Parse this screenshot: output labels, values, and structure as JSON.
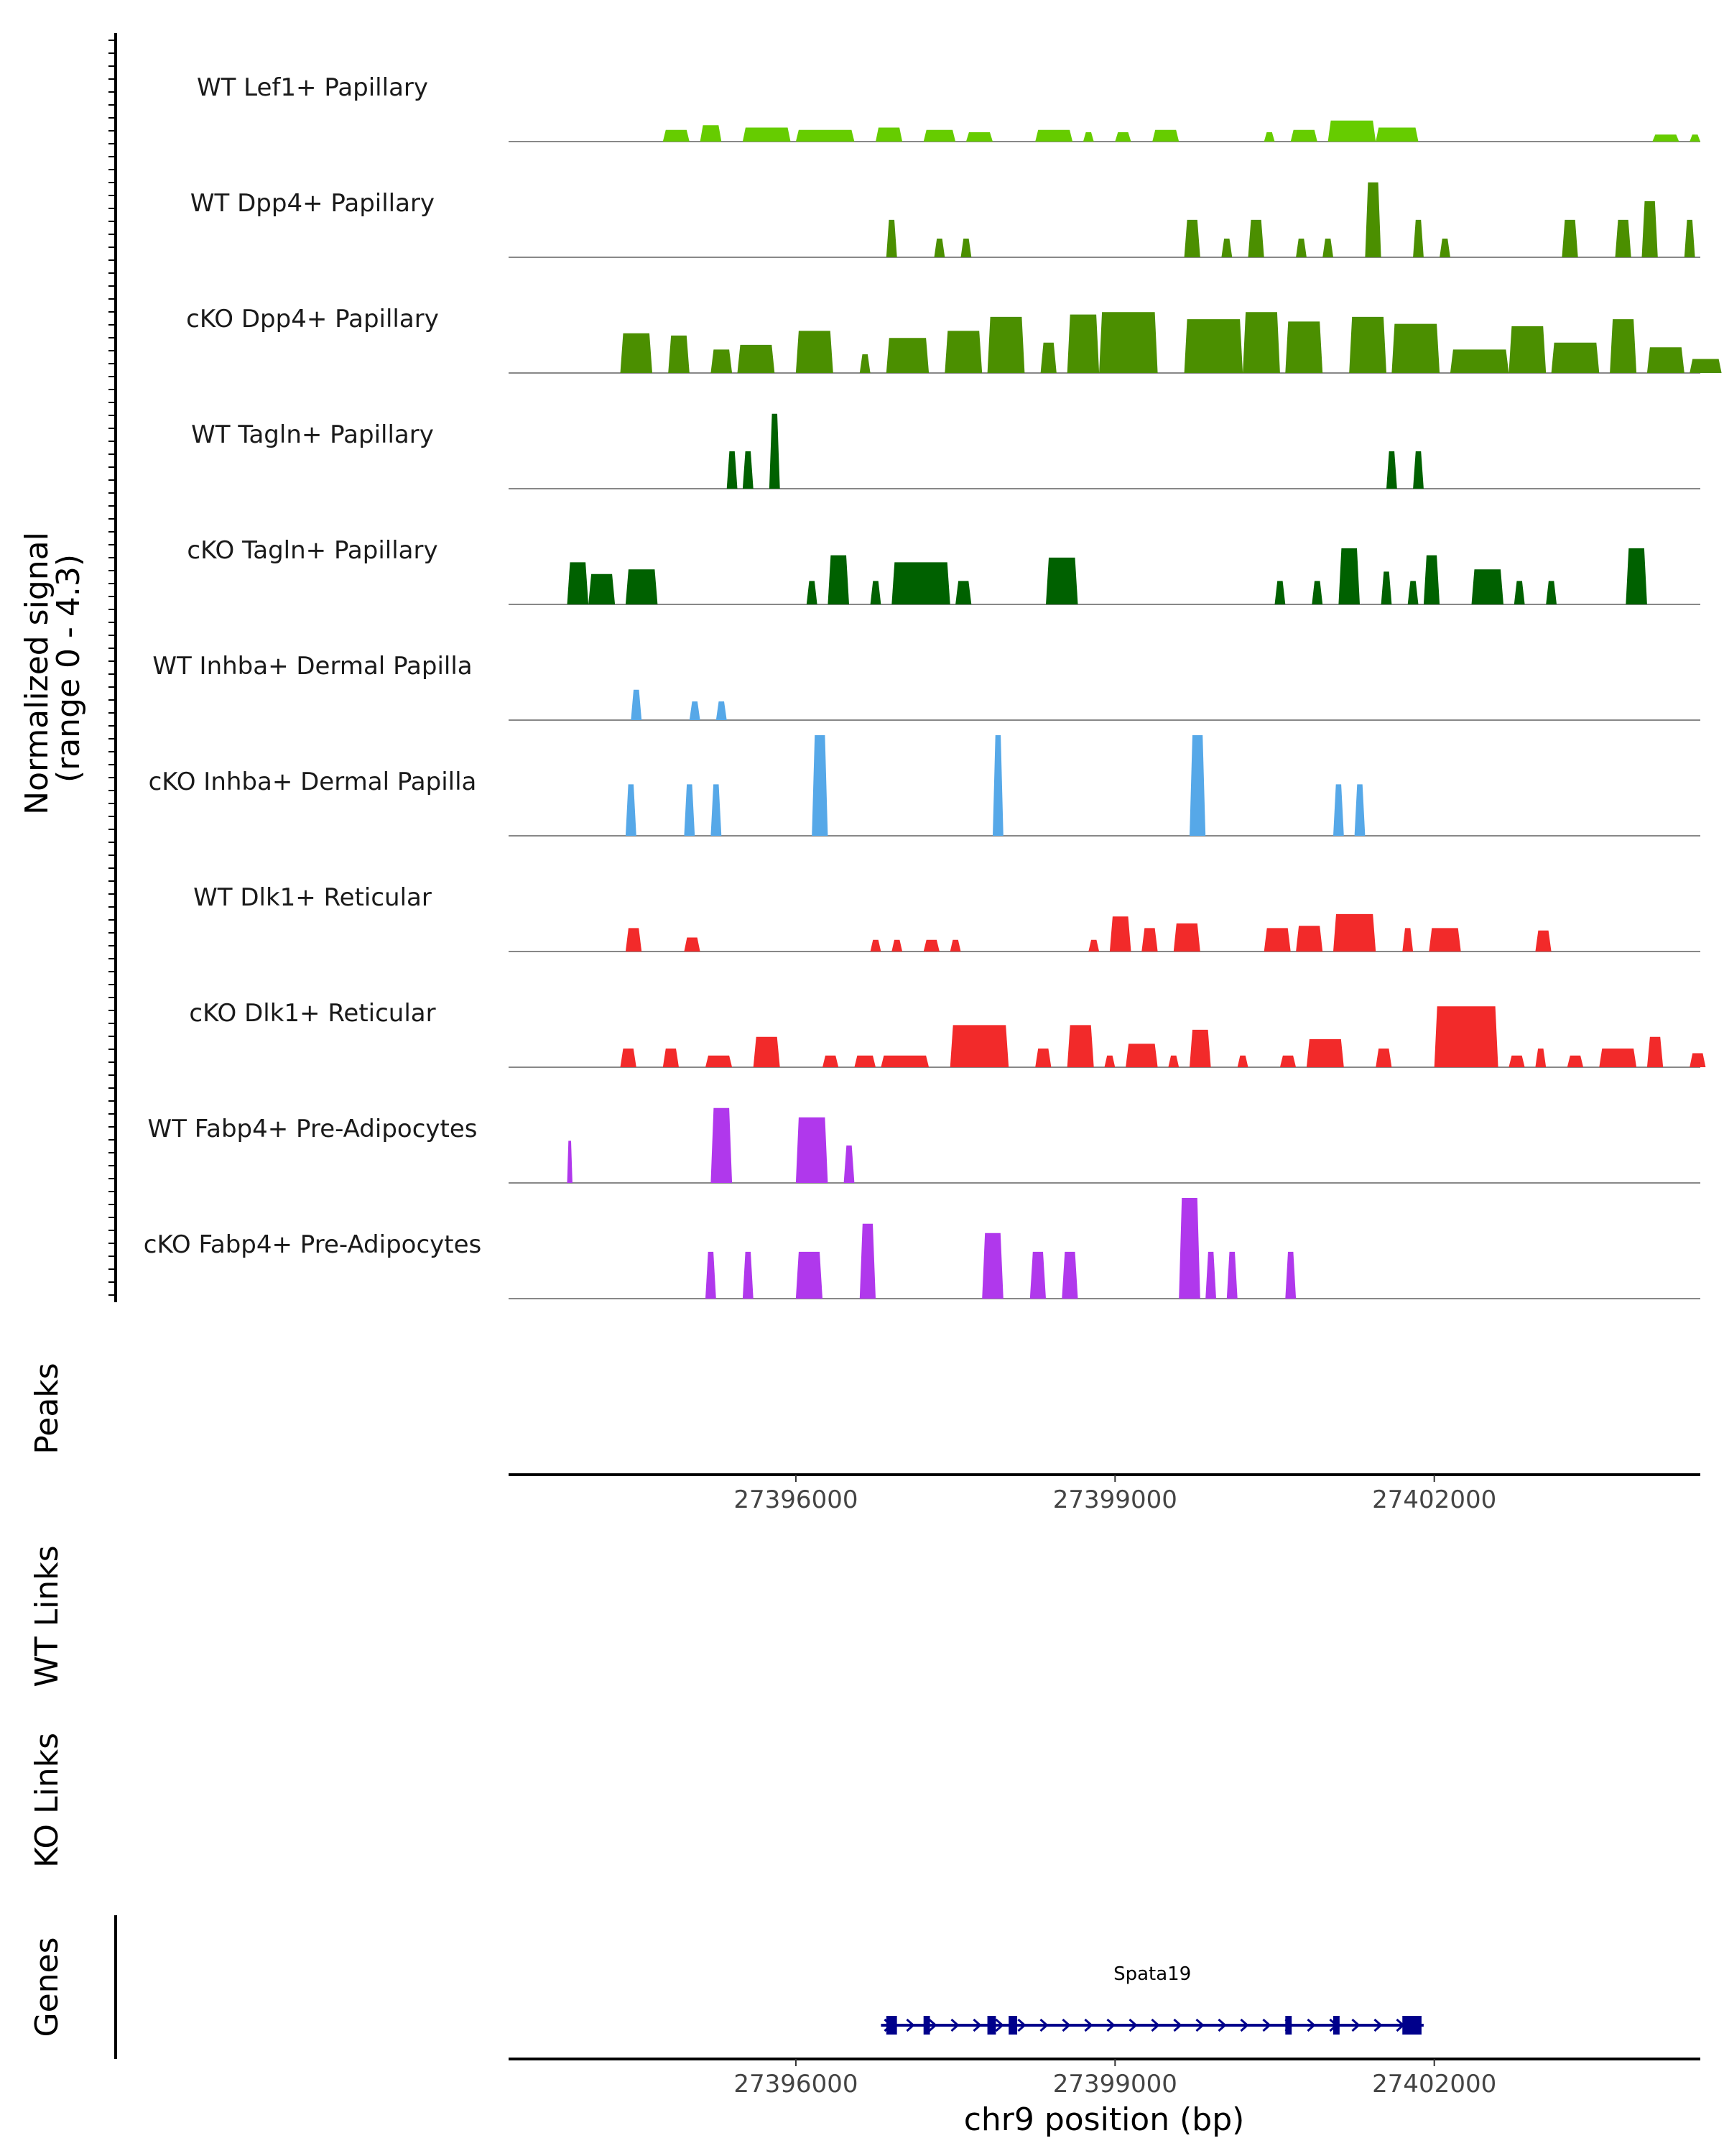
{
  "chart_data": {
    "type": "area",
    "chromosome": "chr9",
    "x_range": [
      27393300,
      27404500
    ],
    "coverage": {
      "ylabel": "Normalized signal\n(range 0 - 4.3)",
      "y_range": [
        0,
        4.3
      ],
      "tracks": [
        {
          "name": "WT Lef1+ Papillary",
          "color": "#66cc00",
          "regions": [
            [
              27394750,
              27395000,
              0.5
            ],
            [
              27395100,
              27395300,
              0.7
            ],
            [
              27395500,
              27395950,
              0.6
            ],
            [
              27396000,
              27396550,
              0.5
            ],
            [
              27396750,
              27397000,
              0.6
            ],
            [
              27397200,
              27397500,
              0.5
            ],
            [
              27397600,
              27397850,
              0.4
            ],
            [
              27398250,
              27398600,
              0.5
            ],
            [
              27398700,
              27398800,
              0.4
            ],
            [
              27399000,
              27399150,
              0.4
            ],
            [
              27399350,
              27399600,
              0.5
            ],
            [
              27400400,
              27400500,
              0.4
            ],
            [
              27400650,
              27400900,
              0.5
            ],
            [
              27401000,
              27401450,
              0.9
            ],
            [
              27401450,
              27401850,
              0.6
            ],
            [
              27404050,
              27404300,
              0.3
            ],
            [
              27404400,
              27404500,
              0.3
            ]
          ]
        },
        {
          "name": "WT Dpp4+ Papillary",
          "color": "#4b8f00",
          "regions": [
            [
              27396850,
              27396950,
              1.6
            ],
            [
              27397300,
              27397400,
              0.8
            ],
            [
              27397550,
              27397650,
              0.8
            ],
            [
              27399650,
              27399800,
              1.6
            ],
            [
              27400000,
              27400100,
              0.8
            ],
            [
              27400250,
              27400400,
              1.6
            ],
            [
              27400700,
              27400800,
              0.8
            ],
            [
              27400950,
              27401050,
              0.8
            ],
            [
              27401350,
              27401500,
              3.2
            ],
            [
              27401800,
              27401900,
              1.6
            ],
            [
              27402050,
              27402150,
              0.8
            ],
            [
              27403200,
              27403350,
              1.6
            ],
            [
              27403700,
              27403850,
              1.6
            ],
            [
              27403950,
              27404100,
              2.4
            ],
            [
              27404350,
              27404450,
              1.6
            ]
          ]
        },
        {
          "name": "cKO Dpp4+ Papillary",
          "color": "#4b8f00",
          "regions": [
            [
              27394350,
              27394650,
              1.7
            ],
            [
              27394800,
              27395000,
              1.6
            ],
            [
              27395200,
              27395400,
              1.0
            ],
            [
              27395450,
              27395800,
              1.2
            ],
            [
              27396000,
              27396350,
              1.8
            ],
            [
              27396600,
              27396700,
              0.8
            ],
            [
              27396850,
              27397250,
              1.5
            ],
            [
              27397400,
              27397750,
              1.8
            ],
            [
              27397800,
              27398150,
              2.4
            ],
            [
              27398300,
              27398450,
              1.3
            ],
            [
              27398550,
              27398850,
              2.5
            ],
            [
              27398850,
              27399400,
              2.6
            ],
            [
              27399650,
              27400200,
              2.3
            ],
            [
              27400200,
              27400550,
              2.6
            ],
            [
              27400600,
              27400950,
              2.2
            ],
            [
              27401200,
              27401550,
              2.4
            ],
            [
              27401600,
              27402050,
              2.1
            ],
            [
              27402150,
              27402700,
              1.0
            ],
            [
              27402700,
              27403050,
              2.0
            ],
            [
              27403100,
              27403550,
              1.3
            ],
            [
              27403650,
              27403900,
              2.3
            ],
            [
              27404000,
              27404350,
              1.1
            ],
            [
              27404400,
              27404700,
              0.6
            ]
          ]
        },
        {
          "name": "WT Tagln+ Papillary",
          "color": "#006100",
          "regions": [
            [
              27395350,
              27395450,
              1.6
            ],
            [
              27395500,
              27395600,
              1.6
            ],
            [
              27395750,
              27395850,
              3.2
            ],
            [
              27401550,
              27401650,
              1.6
            ],
            [
              27401800,
              27401900,
              1.6
            ]
          ]
        },
        {
          "name": "cKO Tagln+ Papillary",
          "color": "#006100",
          "regions": [
            [
              27393850,
              27394050,
              1.8
            ],
            [
              27394050,
              27394300,
              1.3
            ],
            [
              27394400,
              27394700,
              1.5
            ],
            [
              27396100,
              27396200,
              1.0
            ],
            [
              27396300,
              27396500,
              2.1
            ],
            [
              27396700,
              27396800,
              1.0
            ],
            [
              27396900,
              27397450,
              1.8
            ],
            [
              27397500,
              27397650,
              1.0
            ],
            [
              27398350,
              27398650,
              2.0
            ],
            [
              27400500,
              27400600,
              1.0
            ],
            [
              27400850,
              27400950,
              1.0
            ],
            [
              27401100,
              27401300,
              2.4
            ],
            [
              27401500,
              27401600,
              1.4
            ],
            [
              27401750,
              27401850,
              1.0
            ],
            [
              27401900,
              27402050,
              2.1
            ],
            [
              27402350,
              27402650,
              1.5
            ],
            [
              27402750,
              27402850,
              1.0
            ],
            [
              27403050,
              27403150,
              1.0
            ],
            [
              27403800,
              27404000,
              2.4
            ]
          ]
        },
        {
          "name": "WT Inhba+ Dermal Papilla",
          "color": "#56a8e8",
          "regions": [
            [
              27394450,
              27394550,
              1.3
            ],
            [
              27395000,
              27395100,
              0.8
            ],
            [
              27395250,
              27395350,
              0.8
            ]
          ]
        },
        {
          "name": "cKO Inhba+ Dermal Papilla",
          "color": "#56a8e8",
          "regions": [
            [
              27394400,
              27394500,
              2.2
            ],
            [
              27394950,
              27395050,
              2.2
            ],
            [
              27395200,
              27395300,
              2.2
            ],
            [
              27396150,
              27396300,
              4.3
            ],
            [
              27397850,
              27397950,
              4.3
            ],
            [
              27399700,
              27399850,
              4.3
            ],
            [
              27401050,
              27401150,
              2.2
            ],
            [
              27401250,
              27401350,
              2.2
            ]
          ]
        },
        {
          "name": "WT Dlk1+ Reticular",
          "color": "#f22a2a",
          "regions": [
            [
              27394400,
              27394550,
              1.0
            ],
            [
              27394950,
              27395100,
              0.6
            ],
            [
              27396700,
              27396800,
              0.5
            ],
            [
              27396900,
              27397000,
              0.5
            ],
            [
              27397200,
              27397350,
              0.5
            ],
            [
              27397450,
              27397550,
              0.5
            ],
            [
              27398750,
              27398850,
              0.5
            ],
            [
              27398950,
              27399150,
              1.5
            ],
            [
              27399250,
              27399400,
              1.0
            ],
            [
              27399550,
              27399800,
              1.2
            ],
            [
              27400400,
              27400650,
              1.0
            ],
            [
              27400700,
              27400950,
              1.1
            ],
            [
              27401050,
              27401450,
              1.6
            ],
            [
              27401700,
              27401800,
              1.0
            ],
            [
              27401950,
              27402250,
              1.0
            ],
            [
              27402950,
              27403100,
              0.9
            ]
          ]
        },
        {
          "name": "cKO Dlk1+ Reticular",
          "color": "#f22a2a",
          "regions": [
            [
              27394350,
              27394500,
              0.8
            ],
            [
              27394750,
              27394900,
              0.8
            ],
            [
              27395150,
              27395400,
              0.5
            ],
            [
              27395600,
              27395850,
              1.3
            ],
            [
              27396250,
              27396400,
              0.5
            ],
            [
              27396550,
              27396750,
              0.5
            ],
            [
              27396800,
              27397250,
              0.5
            ],
            [
              27397450,
              27398000,
              1.8
            ],
            [
              27398250,
              27398400,
              0.8
            ],
            [
              27398550,
              27398800,
              1.8
            ],
            [
              27398900,
              27399000,
              0.5
            ],
            [
              27399100,
              27399400,
              1.0
            ],
            [
              27399500,
              27399600,
              0.5
            ],
            [
              27399700,
              27399900,
              1.6
            ],
            [
              27400150,
              27400250,
              0.5
            ],
            [
              27400550,
              27400700,
              0.5
            ],
            [
              27400800,
              27401150,
              1.2
            ],
            [
              27401450,
              27401600,
              0.8
            ],
            [
              27402000,
              27402600,
              2.6
            ],
            [
              27402700,
              27402850,
              0.5
            ],
            [
              27402950,
              27403050,
              0.8
            ],
            [
              27403250,
              27403400,
              0.5
            ],
            [
              27403550,
              27403900,
              0.8
            ],
            [
              27404000,
              27404150,
              1.3
            ],
            [
              27404400,
              27404550,
              0.6
            ]
          ]
        },
        {
          "name": "WT Fabp4+ Pre-Adipocytes",
          "color": "#b038ec",
          "regions": [
            [
              27393850,
              27393900,
              1.8
            ],
            [
              27395200,
              27395400,
              3.2
            ],
            [
              27396000,
              27396300,
              2.8
            ],
            [
              27396450,
              27396550,
              1.6
            ]
          ]
        },
        {
          "name": "cKO Fabp4+ Pre-Adipocytes",
          "color": "#b038ec",
          "regions": [
            [
              27395150,
              27395250,
              2.0
            ],
            [
              27395500,
              27395600,
              2.0
            ],
            [
              27396000,
              27396250,
              2.0
            ],
            [
              27396600,
              27396750,
              3.2
            ],
            [
              27397750,
              27397950,
              2.8
            ],
            [
              27398200,
              27398350,
              2.0
            ],
            [
              27398500,
              27398650,
              2.0
            ],
            [
              27399600,
              27399800,
              4.3
            ],
            [
              27399850,
              27399950,
              2.0
            ],
            [
              27400050,
              27400150,
              2.0
            ],
            [
              27400600,
              27400700,
              2.0
            ]
          ]
        }
      ]
    },
    "peaks": {
      "label": "Peaks",
      "ticks": [
        27396000,
        27399000,
        27402000
      ],
      "tick_labels": [
        "27396000",
        "27399000",
        "27402000"
      ]
    },
    "links": [
      {
        "label": "WT Links"
      },
      {
        "label": "KO Links"
      }
    ],
    "genes": {
      "label": "Genes",
      "ticks": [
        27396000,
        27399000,
        27402000
      ],
      "tick_labels": [
        "27396000",
        "27399000",
        "27402000"
      ],
      "xlabel": "chr9 position (bp)",
      "items": [
        {
          "name": "Spata19",
          "start": 27396800,
          "end": 27401900,
          "strand": "+",
          "exons": [
            [
              27396850,
              27396950
            ],
            [
              27397200,
              27397260
            ],
            [
              27397800,
              27397880
            ],
            [
              27398000,
              27398080
            ],
            [
              27400600,
              27400660
            ],
            [
              27401050,
              27401110
            ],
            [
              27401700,
              27401880
            ]
          ]
        }
      ]
    }
  }
}
